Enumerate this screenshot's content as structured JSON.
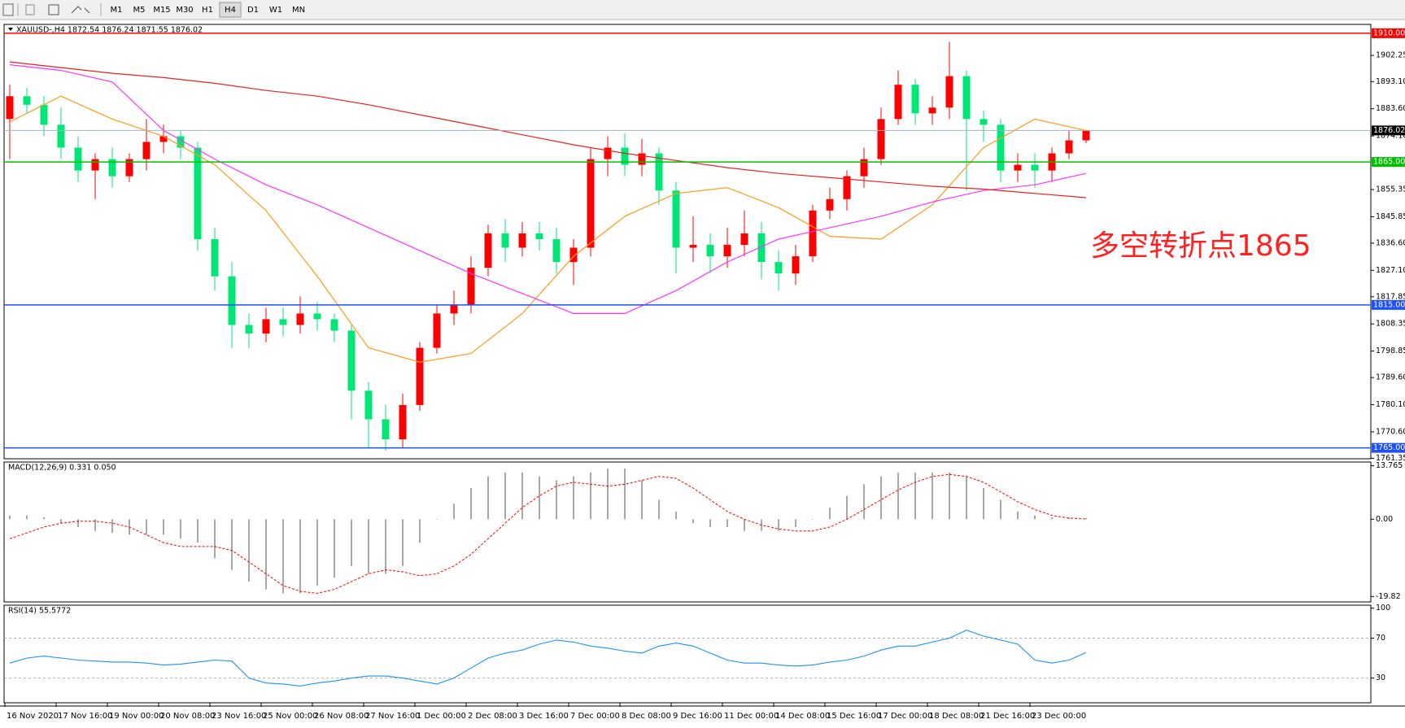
{
  "toolbar": {
    "timeframes": [
      "M1",
      "M5",
      "M15",
      "M30",
      "H1",
      "H4",
      "D1",
      "W1",
      "MN"
    ],
    "active": "H4"
  },
  "chart_data": [
    {
      "type": "candlestick",
      "title": "XAUUSD-,H4  1872.54 1876.24 1871.55 1876.02",
      "open": [
        1880,
        1888,
        1885,
        1878,
        1870,
        1862,
        1866,
        1860,
        1866,
        1872,
        1874,
        1870,
        1838,
        1825,
        1808,
        1805,
        1810,
        1808,
        1812,
        1810,
        1806,
        1785,
        1775,
        1768,
        1780,
        1800,
        1812,
        1815,
        1828,
        1840,
        1835,
        1840,
        1838,
        1830,
        1835,
        1866,
        1870,
        1864,
        1868,
        1855,
        1835,
        1836,
        1832,
        1836,
        1840,
        1830,
        1826,
        1832,
        1848,
        1852,
        1860,
        1866,
        1880,
        1892,
        1882,
        1884,
        1895,
        1880,
        1878,
        1862,
        1864,
        1862,
        1868,
        1872.54
      ],
      "high": [
        1892,
        1891,
        1888,
        1884,
        1874,
        1868,
        1870,
        1868,
        1880,
        1878,
        1876,
        1872,
        1842,
        1830,
        1812,
        1814,
        1814,
        1818,
        1816,
        1812,
        1808,
        1788,
        1780,
        1784,
        1802,
        1815,
        1820,
        1832,
        1843,
        1845,
        1844,
        1844,
        1842,
        1838,
        1870,
        1874,
        1875,
        1873,
        1870,
        1858,
        1846,
        1840,
        1842,
        1848,
        1844,
        1834,
        1836,
        1850,
        1856,
        1862,
        1870,
        1884,
        1897,
        1894,
        1888,
        1907,
        1897,
        1883,
        1880,
        1868,
        1868,
        1870,
        1876,
        1876.24
      ],
      "low": [
        1866,
        1882,
        1874,
        1866,
        1858,
        1852,
        1856,
        1858,
        1862,
        1868,
        1866,
        1834,
        1820,
        1800,
        1800,
        1802,
        1804,
        1805,
        1806,
        1802,
        1775,
        1765,
        1764,
        1765,
        1778,
        1798,
        1808,
        1812,
        1825,
        1830,
        1832,
        1834,
        1826,
        1822,
        1832,
        1860,
        1860,
        1860,
        1850,
        1826,
        1830,
        1826,
        1828,
        1832,
        1824,
        1820,
        1822,
        1830,
        1845,
        1848,
        1856,
        1864,
        1878,
        1878,
        1878,
        1880,
        1855,
        1872,
        1858,
        1858,
        1856,
        1858,
        1866,
        1871.55
      ],
      "close": [
        1888,
        1885,
        1878,
        1870,
        1862,
        1866,
        1860,
        1866,
        1872,
        1874,
        1870,
        1838,
        1825,
        1808,
        1805,
        1810,
        1808,
        1812,
        1810,
        1806,
        1785,
        1775,
        1768,
        1780,
        1800,
        1812,
        1815,
        1828,
        1840,
        1835,
        1840,
        1838,
        1830,
        1835,
        1866,
        1870,
        1864,
        1868,
        1855,
        1835,
        1836,
        1832,
        1836,
        1840,
        1830,
        1826,
        1832,
        1848,
        1852,
        1860,
        1866,
        1880,
        1892,
        1882,
        1884,
        1895,
        1880,
        1878,
        1862,
        1864,
        1862,
        1868,
        1872.54,
        1876.02
      ],
      "up_color": "#ff0000",
      "down_color": "#00e676",
      "series": [
        {
          "color": "#ff9a1a",
          "x": [
            0,
            3,
            6,
            9,
            12,
            15,
            18,
            21,
            24,
            27,
            30,
            33,
            36,
            39,
            42,
            45,
            48,
            51,
            54,
            57,
            60,
            63
          ],
          "values": [
            1879,
            1888,
            1880,
            1874,
            1864,
            1848,
            1825,
            1800,
            1795,
            1798,
            1812,
            1832,
            1846,
            1854,
            1856,
            1849,
            1839,
            1838,
            1850,
            1870,
            1880,
            1876
          ]
        },
        {
          "color": "#ff33ff",
          "x": [
            0,
            3,
            6,
            9,
            12,
            15,
            18,
            21,
            24,
            27,
            30,
            33,
            36,
            39,
            42,
            45,
            48,
            51,
            54,
            57,
            60,
            63
          ],
          "values": [
            1899,
            1897,
            1893,
            1876,
            1866,
            1857,
            1850,
            1842,
            1834,
            1826,
            1819,
            1812,
            1812,
            1820,
            1830,
            1838,
            1842,
            1846,
            1851,
            1855,
            1857,
            1861
          ]
        },
        {
          "color": "#e8231e",
          "x": [
            0,
            3,
            6,
            9,
            12,
            15,
            18,
            21,
            24,
            27,
            30,
            33,
            36,
            39,
            42,
            45,
            48,
            51,
            54,
            57,
            60,
            63
          ],
          "values": [
            1900,
            1898,
            1896,
            1894.5,
            1892.5,
            1890,
            1888,
            1885,
            1881.5,
            1878,
            1874.5,
            1871,
            1868,
            1865.5,
            1863,
            1861,
            1859.5,
            1858,
            1856.5,
            1855.5,
            1854,
            1852.5
          ]
        }
      ],
      "ylim": [
        1761.2,
        1913.1
      ],
      "yticks": [
        {
          "value": 1902.25,
          "label": "1902.25"
        },
        {
          "value": 1893.1,
          "label": "1893.10"
        },
        {
          "value": 1883.6,
          "label": "1883.60"
        },
        {
          "value": 1874.1,
          "label": "1874.10"
        },
        {
          "value": 1855.35,
          "label": "1855.35"
        },
        {
          "value": 1845.85,
          "label": "1845.85"
        },
        {
          "value": 1836.6,
          "label": "1836.60"
        },
        {
          "value": 1827.1,
          "label": "1827.10"
        },
        {
          "value": 1817.85,
          "label": "1817.85"
        },
        {
          "value": 1808.35,
          "label": "1808.35"
        },
        {
          "value": 1798.85,
          "label": "1798.85"
        },
        {
          "value": 1789.6,
          "label": "1789.60"
        },
        {
          "value": 1780.1,
          "label": "1780.10"
        },
        {
          "value": 1770.6,
          "label": "1770.60"
        },
        {
          "value": 1761.35,
          "label": "1761.35"
        }
      ],
      "hlines": [
        {
          "value": 1910,
          "label": "1910.00",
          "color": "#ff0000"
        },
        {
          "value": 1865,
          "label": "1865.00",
          "color": "#00c000"
        },
        {
          "value": 1815,
          "label": "1815.00",
          "color": "#1e50ff"
        },
        {
          "value": 1765,
          "label": "1765.00",
          "color": "#1e50ff"
        }
      ],
      "last_price": {
        "value": 1876.02,
        "label": "1876.02"
      },
      "annotation": "多空转折点1865"
    },
    {
      "type": "macd",
      "title": "MACD(12,26,9) 0.331 0.050",
      "histogram": [
        1,
        1,
        0.5,
        -1,
        -2,
        -3,
        -3.5,
        -4,
        -4,
        -4,
        -5,
        -6,
        -10,
        -13,
        -16,
        -18,
        -19,
        -19,
        -17,
        -15,
        -12,
        -14,
        -14,
        -12,
        -6,
        0,
        4,
        8,
        11,
        12,
        12,
        11,
        10,
        11,
        12,
        13,
        13,
        10,
        5,
        2,
        -1,
        -2,
        -2,
        -3,
        -3,
        -3,
        -2,
        0,
        3,
        6,
        9,
        11,
        12,
        12,
        12,
        12,
        11,
        8,
        5,
        2,
        1,
        0.5,
        0.4,
        0.331
      ],
      "signal": [
        -5,
        -3.5,
        -2,
        -1,
        -0.5,
        -0.5,
        -1,
        -2,
        -4,
        -6,
        -7,
        -7,
        -7,
        -8,
        -11,
        -14,
        -17,
        -18.5,
        -19,
        -18,
        -16,
        -14,
        -13,
        -13.5,
        -14.5,
        -14,
        -12,
        -9,
        -5,
        -1,
        3,
        6,
        8.5,
        9.5,
        9,
        8.5,
        9,
        10,
        11,
        10.5,
        8,
        5,
        2,
        0,
        -1.5,
        -2.5,
        -3,
        -3,
        -2,
        0,
        2.5,
        5,
        7.5,
        9.5,
        11,
        11.5,
        11,
        9.5,
        7,
        4.5,
        2.5,
        1,
        0.3,
        0.05
      ],
      "hist_color": "#a8a8a8",
      "signal_color": "#ff0000",
      "ylim": [
        -21.22,
        14.69
      ],
      "yticks": [
        13.765,
        {
          "value": 0,
          "label": "0.00"
        },
        -19.82
      ]
    },
    {
      "type": "line",
      "title": "RSI(14) 55.5772",
      "values": [
        45,
        50,
        52,
        50,
        48,
        47,
        46,
        46,
        45,
        43,
        44,
        46,
        48,
        47,
        30,
        25,
        24,
        22,
        25,
        27,
        30,
        32,
        32,
        30,
        27,
        24,
        30,
        40,
        50,
        55,
        58,
        64,
        68,
        66,
        62,
        60,
        57,
        55,
        62,
        65,
        62,
        55,
        48,
        45,
        45,
        43,
        42,
        43,
        46,
        48,
        52,
        58,
        62,
        62,
        66,
        70,
        78,
        72,
        68,
        64,
        48,
        45,
        48,
        55.5772
      ],
      "color": "#1e90ff",
      "ylim": [
        5.2,
        103
      ],
      "yticks": [
        100,
        70,
        30
      ],
      "levels": [
        70,
        30
      ],
      "x_labels": [
        "16 Nov 2020",
        "17 Nov 16:00",
        "19 Nov 00:00",
        "20 Nov 08:00",
        "23 Nov 16:00",
        "25 Nov 00:00",
        "26 Nov 08:00",
        "27 Nov 16:00",
        "1 Dec 00:00",
        "2 Dec 08:00",
        "3 Dec 16:00",
        "7 Dec 00:00",
        "8 Dec 08:00",
        "9 Dec 16:00",
        "11 Dec 00:00",
        "14 Dec 08:00",
        "15 Dec 16:00",
        "17 Dec 00:00",
        "18 Dec 08:00",
        "21 Dec 16:00",
        "23 Dec 00:00"
      ]
    }
  ]
}
